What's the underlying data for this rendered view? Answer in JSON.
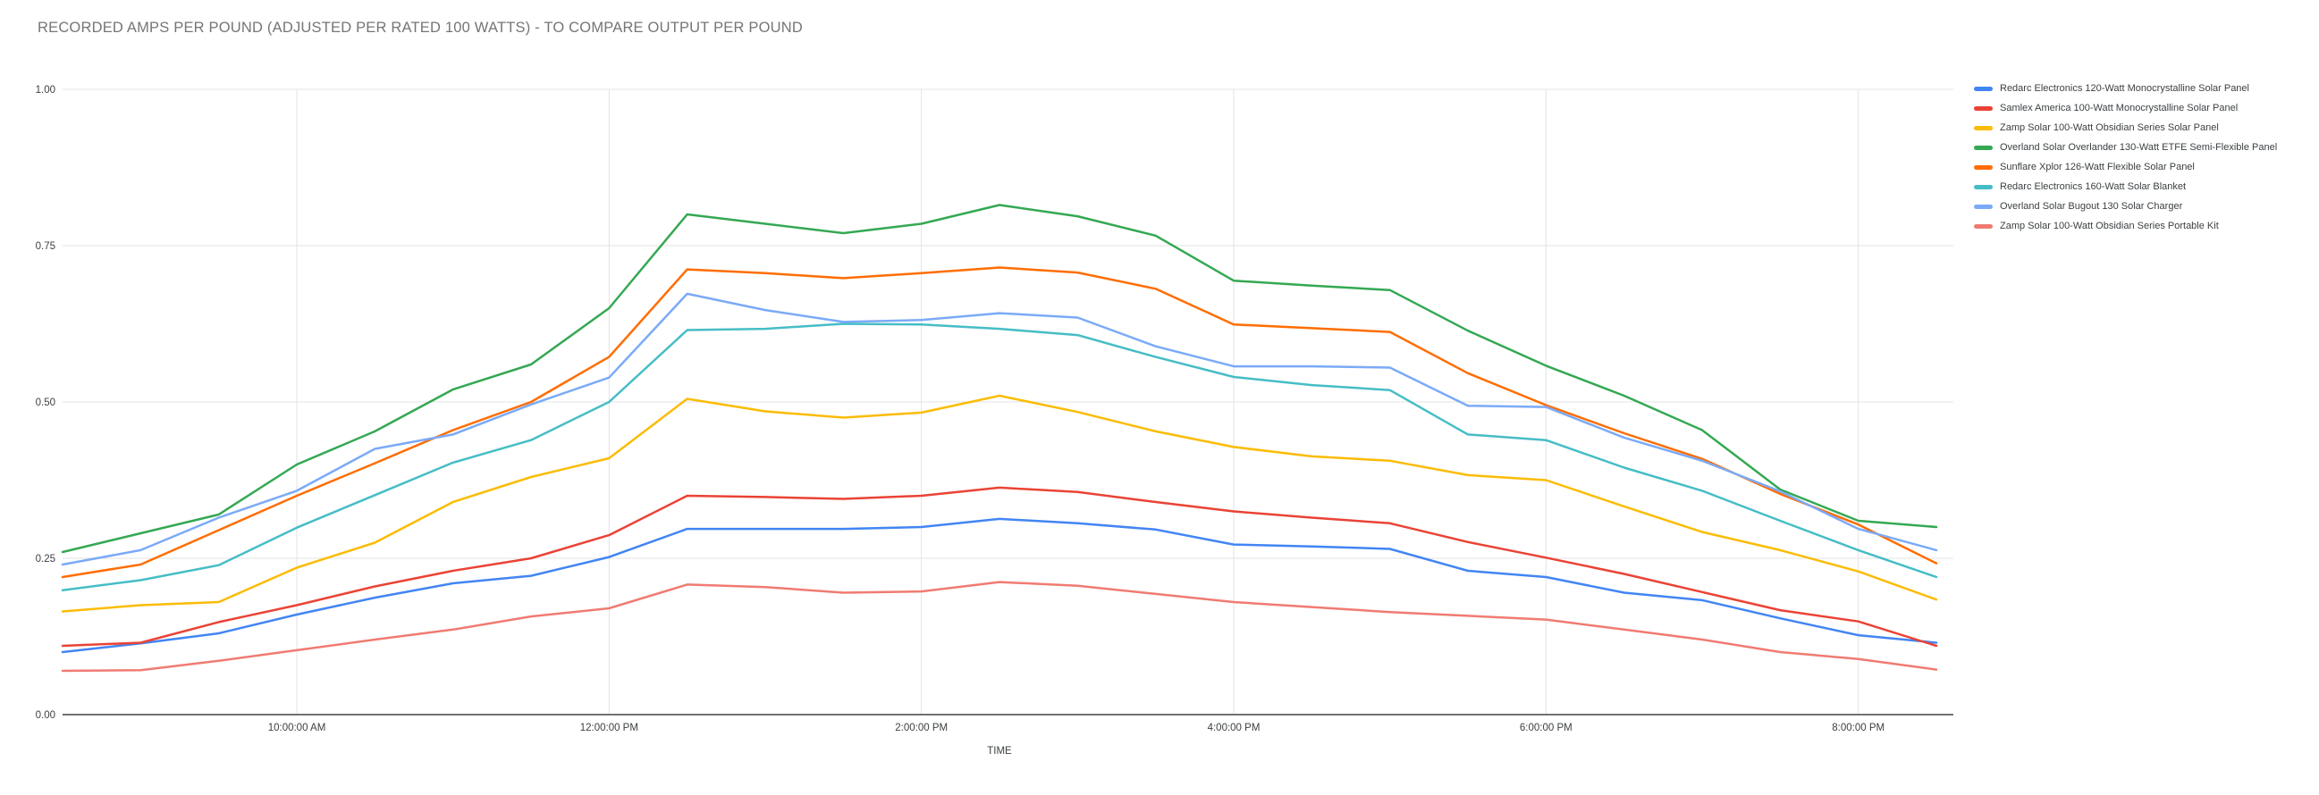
{
  "page": {
    "background": "#ffffff"
  },
  "chart_data": {
    "type": "line",
    "title": "RECORDED AMPS PER POUND (ADJUSTED PER RATED 100 WATTS) - TO COMPARE OUTPUT PER POUND",
    "xlabel": "TIME",
    "ylabel": "",
    "ylim": [
      0,
      1
    ],
    "ytick_labels": [
      "0.00",
      "0.25",
      "0.50",
      "0.75",
      "1.00"
    ],
    "yticks": [
      0,
      0.25,
      0.5,
      0.75,
      1
    ],
    "grid": true,
    "legend_position": "right",
    "x_start": "8:30:00 AM",
    "x_end": "8:30:00 PM",
    "x_interval_minutes": 30,
    "x_point_count": 25,
    "x_gridlines": [
      {
        "index": 3,
        "label": "10:00:00 AM"
      },
      {
        "index": 7,
        "label": "12:00:00 PM"
      },
      {
        "index": 11,
        "label": "2:00:00 PM"
      },
      {
        "index": 15,
        "label": "4:00:00 PM"
      },
      {
        "index": 19,
        "label": "6:00:00 PM"
      },
      {
        "index": 23,
        "label": "8:00:00 PM"
      }
    ],
    "series": [
      {
        "name": "Redarc Electronics 120-Watt Monocrystalline Solar Panel",
        "color": "#4285f4",
        "values": [
          0.1,
          0.114,
          0.13,
          0.16,
          0.187,
          0.21,
          0.222,
          0.252,
          0.297,
          0.297,
          0.297,
          0.3,
          0.313,
          0.306,
          0.296,
          0.272,
          0.269,
          0.265,
          0.23,
          0.22,
          0.195,
          0.183,
          0.154,
          0.127,
          0.115
        ]
      },
      {
        "name": "Samlex America 100-Watt Monocrystalline Solar Panel",
        "color": "#ea4335",
        "values": [
          0.11,
          0.115,
          0.148,
          0.175,
          0.205,
          0.23,
          0.25,
          0.287,
          0.35,
          0.348,
          0.345,
          0.35,
          0.363,
          0.356,
          0.34,
          0.325,
          0.315,
          0.306,
          0.276,
          0.251,
          0.225,
          0.196,
          0.167,
          0.149,
          0.11
        ]
      },
      {
        "name": "Zamp Solar 100-Watt Obsidian Series Solar Panel",
        "color": "#fbbc04",
        "values": [
          0.165,
          0.175,
          0.18,
          0.235,
          0.275,
          0.34,
          0.38,
          0.41,
          0.505,
          0.485,
          0.475,
          0.483,
          0.51,
          0.484,
          0.453,
          0.428,
          0.413,
          0.406,
          0.383,
          0.375,
          0.333,
          0.292,
          0.263,
          0.229,
          0.184
        ]
      },
      {
        "name": "Overland Solar Overlander 130-Watt ETFE Semi-Flexible Panel",
        "color": "#34a853",
        "values": [
          0.26,
          0.29,
          0.32,
          0.4,
          0.453,
          0.52,
          0.56,
          0.65,
          0.8,
          0.785,
          0.77,
          0.785,
          0.815,
          0.797,
          0.766,
          0.694,
          0.686,
          0.679,
          0.614,
          0.558,
          0.51,
          0.455,
          0.36,
          0.31,
          0.3
        ]
      },
      {
        "name": "Sunflare Xplor 126-Watt Flexible Solar Panel",
        "color": "#ff6d01",
        "values": [
          0.22,
          0.24,
          0.295,
          0.35,
          0.402,
          0.455,
          0.5,
          0.572,
          0.712,
          0.706,
          0.698,
          0.706,
          0.715,
          0.707,
          0.681,
          0.624,
          0.618,
          0.612,
          0.546,
          0.495,
          0.45,
          0.409,
          0.353,
          0.304,
          0.242
        ]
      },
      {
        "name": "Redarc Electronics 160-Watt Solar Blanket",
        "color": "#46bdc6",
        "values": [
          0.199,
          0.215,
          0.239,
          0.299,
          0.351,
          0.403,
          0.439,
          0.5,
          0.615,
          0.617,
          0.625,
          0.624,
          0.617,
          0.607,
          0.572,
          0.54,
          0.527,
          0.519,
          0.448,
          0.439,
          0.395,
          0.358,
          0.31,
          0.263,
          0.22
        ]
      },
      {
        "name": "Overland Solar Bugout 130 Solar Charger",
        "color": "#7baaf7",
        "values": [
          0.24,
          0.263,
          0.315,
          0.358,
          0.425,
          0.448,
          0.496,
          0.539,
          0.673,
          0.647,
          0.628,
          0.631,
          0.642,
          0.635,
          0.589,
          0.557,
          0.557,
          0.555,
          0.494,
          0.492,
          0.443,
          0.406,
          0.357,
          0.297,
          0.263
        ]
      },
      {
        "name": "Zamp Solar 100-Watt Obsidian Series Portable Kit",
        "color": "#f07b72",
        "values": [
          0.07,
          0.071,
          0.086,
          0.103,
          0.12,
          0.136,
          0.157,
          0.17,
          0.208,
          0.204,
          0.195,
          0.197,
          0.212,
          0.206,
          0.193,
          0.18,
          0.172,
          0.164,
          0.158,
          0.152,
          0.136,
          0.12,
          0.1,
          0.089,
          0.072
        ]
      }
    ],
    "colors": {
      "gridline": "#e3e3e3",
      "axis_line": "#424242",
      "tick_label": "#3c4043",
      "title": "#757575"
    }
  }
}
